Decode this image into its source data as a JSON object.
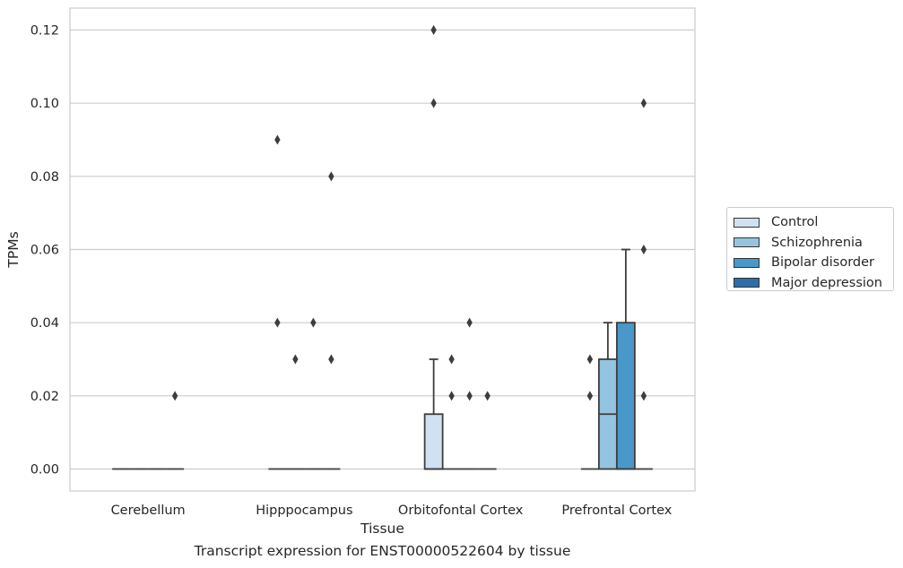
{
  "chart_data": {
    "type": "boxplot",
    "title": "",
    "caption": "Transcript expression for ENST00000522604 by tissue",
    "xlabel": "Tissue",
    "ylabel": "TPMs",
    "ylim": [
      -0.006,
      0.126
    ],
    "yticks": [
      "0.00",
      "0.02",
      "0.04",
      "0.06",
      "0.08",
      "0.10",
      "0.12"
    ],
    "grid": "horizontal",
    "legend_position": "right",
    "categories": [
      "Cerebellum",
      "Hipppocampus",
      "Orbitofontal Cortex",
      "Prefrontal Cortex"
    ],
    "series": [
      {
        "name": "Control",
        "color": "#d0e1f2",
        "boxes": [
          {
            "q1": 0,
            "median": 0,
            "q3": 0,
            "whislo": 0,
            "whishi": 0,
            "fliers": []
          },
          {
            "q1": 0,
            "median": 0,
            "q3": 0,
            "whislo": 0,
            "whishi": 0,
            "fliers": [
              0.09,
              0.04
            ]
          },
          {
            "q1": 0,
            "median": 0,
            "q3": 0.015,
            "whislo": 0,
            "whishi": 0.03,
            "fliers": [
              0.12,
              0.1
            ]
          },
          {
            "q1": 0,
            "median": 0,
            "q3": 0,
            "whislo": 0,
            "whishi": 0,
            "fliers": [
              0.03,
              0.02
            ]
          }
        ]
      },
      {
        "name": "Schizophrenia",
        "color": "#94c4df",
        "boxes": [
          {
            "q1": 0,
            "median": 0,
            "q3": 0,
            "whislo": 0,
            "whishi": 0,
            "fliers": []
          },
          {
            "q1": 0,
            "median": 0,
            "q3": 0,
            "whislo": 0,
            "whishi": 0,
            "fliers": [
              0.03
            ]
          },
          {
            "q1": 0,
            "median": 0,
            "q3": 0,
            "whislo": 0,
            "whishi": 0,
            "fliers": [
              0.03,
              0.02
            ]
          },
          {
            "q1": 0,
            "median": 0.015,
            "q3": 0.03,
            "whislo": 0,
            "whishi": 0.04,
            "fliers": []
          }
        ]
      },
      {
        "name": "Bipolar disorder",
        "color": "#4a98c9",
        "boxes": [
          {
            "q1": 0,
            "median": 0,
            "q3": 0,
            "whislo": 0,
            "whishi": 0,
            "fliers": []
          },
          {
            "q1": 0,
            "median": 0,
            "q3": 0,
            "whislo": 0,
            "whishi": 0,
            "fliers": [
              0.04
            ]
          },
          {
            "q1": 0,
            "median": 0,
            "q3": 0,
            "whislo": 0,
            "whishi": 0,
            "fliers": [
              0.04,
              0.02
            ]
          },
          {
            "q1": 0,
            "median": 0,
            "q3": 0.04,
            "whislo": 0,
            "whishi": 0.06,
            "fliers": []
          }
        ]
      },
      {
        "name": "Major depression",
        "color": "#2e6ea8",
        "boxes": [
          {
            "q1": 0,
            "median": 0,
            "q3": 0,
            "whislo": 0,
            "whishi": 0,
            "fliers": [
              0.02
            ]
          },
          {
            "q1": 0,
            "median": 0,
            "q3": 0,
            "whislo": 0,
            "whishi": 0,
            "fliers": [
              0.08,
              0.03
            ]
          },
          {
            "q1": 0,
            "median": 0,
            "q3": 0,
            "whislo": 0,
            "whishi": 0,
            "fliers": [
              0.02
            ]
          },
          {
            "q1": 0,
            "median": 0,
            "q3": 0,
            "whislo": 0,
            "whishi": 0,
            "fliers": [
              0.1,
              0.06,
              0.02
            ]
          }
        ]
      }
    ]
  }
}
